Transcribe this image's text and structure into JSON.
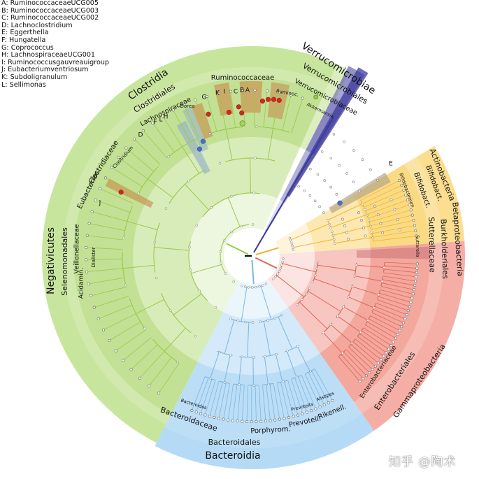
{
  "legend": [
    "A: RuminococcaceaeUCG005",
    "B: RuminococcaceaeUCG003",
    "C: RuminococcaceaeUCG002",
    "D: Lachnoclostridium",
    "E: Eggerthella",
    "F: Hungatella",
    "G: Coprococcus",
    "H: LachnospiraceaeUCG001",
    "I: Ruminococcusgauvreauigroup",
    "J: Eubacteriumventriosum",
    "K: Subdoligranulum",
    "L: Sellimonas"
  ],
  "colors": {
    "firmicutes": "#9bcf4c",
    "firmicutes_light": "#d9edb8",
    "verrucomicrobia": "#3c3a9c",
    "actinobacteria": "#f7c233",
    "proteobacteria": "#ec6c5c",
    "bacteroidetes": "#8fc9f0",
    "highlight": "#c9874a",
    "marker_red": "#d0281c",
    "marker_blue": "#4b6ec8"
  },
  "labels": {
    "clostridia": "Clostridia",
    "clostridiales": "Clostridiales",
    "lachnospiraceae": "Lachnospiraceae",
    "ruminococcaceae": "Ruminococcaceae",
    "dorea": "Dorea",
    "ruminoc": "Ruminoc.",
    "eubacteriac": "Eubacteriac.",
    "clostridiaceae": "Clostridiaceae",
    "clostridium": "Clostridium",
    "negativicutes": "Negativicutes",
    "selenomonadales": "Selenomonadales",
    "veillonellaceae": "Veillonellaceae",
    "acidamin": "Acidamin.",
    "dialister": "Dialister",
    "verrucomicrobiae": "Verrucomicrobiae",
    "verrucomicrobiales": "Verrucomicrobiales",
    "verrucomicrobiaceae": "Verrucomicrobiaceae",
    "akkermansia": "Akkermansia",
    "actinobacteria": "Actinobacteria",
    "bifidobact1": "Bifidobact.",
    "bifidobact2": "Bifidobact.",
    "bifidobacterium": "Bifidobacterium",
    "betaproteobacteria": "Betaproteobacteria",
    "burkholderiales": "Burkholderiales",
    "sutterellaceae": "Sutterellaceae",
    "sutterella": "Sutterella",
    "gammaproteobacteria": "Gammaproteobacteria",
    "enterobacteriales": "Enterobacteriales",
    "enterobacteriaceae": "Enterobacteriaceae",
    "bacteroidia": "Bacteroidia",
    "bacteroidales": "Bacteroidales",
    "bacteroidaceae": "Bacteroidaceae",
    "bacteroides": "Bacteroides",
    "porphyrom": "Porphyrom.",
    "prevotell": "Prevotell.",
    "rikenell": "Rikenell.",
    "prevotella": "Prevotella",
    "alistipes": "Alistipes",
    "clade_A": "A",
    "clade_B": "B",
    "clade_C": "C",
    "clade_D": "D",
    "clade_E": "E",
    "clade_F": "F",
    "clade_G": "G",
    "clade_H": "H",
    "clade_I": "I",
    "clade_J": "J",
    "clade_K": "K",
    "clade_L": "L"
  },
  "watermark": "知乎 @陶术"
}
